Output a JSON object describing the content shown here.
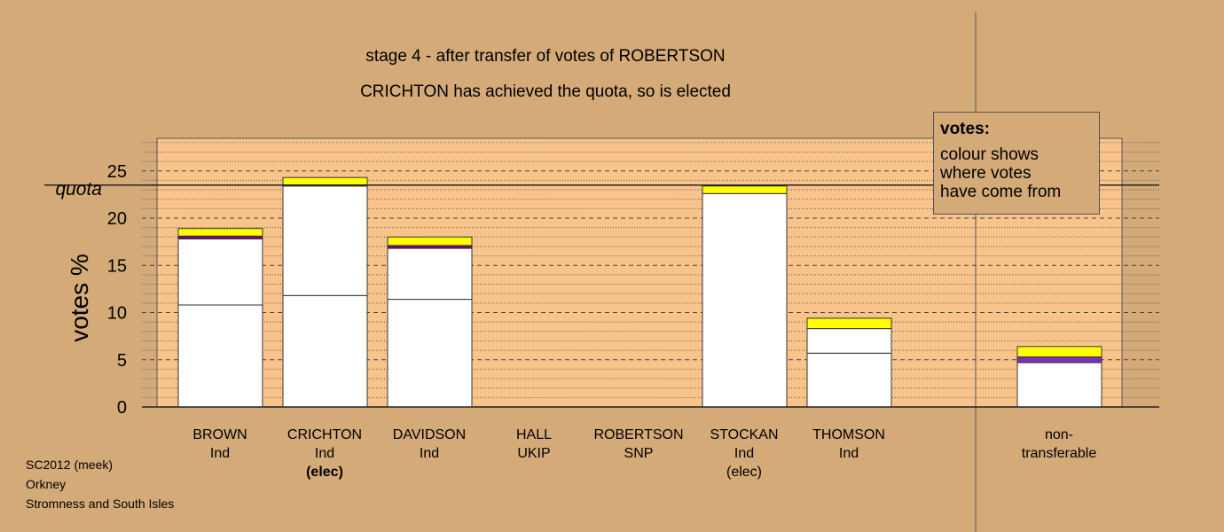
{
  "title": "stage 4 - after transfer of votes of ROBERTSON",
  "subtitle": "CRICHTON has achieved the quota, so is elected",
  "legend": {
    "heading": "votes:",
    "line1": "colour shows",
    "line2": "where votes",
    "line3": "have come from"
  },
  "footer": {
    "line1": "SC2012 (meek)",
    "line2": "Orkney",
    "line3": "Stromness and South Isles"
  },
  "colors": {
    "background": "#d4aa78",
    "plot_area": "#f9c48c",
    "first_preferences": "#ffffff",
    "transfer_1": "#800080",
    "transfer_2": "#ffff00",
    "transfer_3": "#7b2fbe"
  },
  "chart_data": {
    "type": "bar",
    "stacked": true,
    "ylabel": "votes %",
    "quota_label": "quota",
    "quota": 23.5,
    "ylim": [
      0,
      28.5
    ],
    "yticks": [
      0,
      5,
      10,
      15,
      20,
      25
    ],
    "grid": "dashed major, dotted minor",
    "categories": [
      {
        "name": "BROWN",
        "party": "Ind",
        "status": ""
      },
      {
        "name": "CRICHTON",
        "party": "Ind",
        "status": "(elec)"
      },
      {
        "name": "DAVIDSON",
        "party": "Ind",
        "status": ""
      },
      {
        "name": "HALL",
        "party": "UKIP",
        "status": ""
      },
      {
        "name": "ROBERTSON",
        "party": "SNP",
        "status": ""
      },
      {
        "name": "STOCKAN",
        "party": "Ind",
        "status": "(elec)"
      },
      {
        "name": "THOMSON",
        "party": "Ind",
        "status": ""
      },
      {
        "name": "non-",
        "party": "transferable",
        "status": ""
      }
    ],
    "series": [
      {
        "color": "#ffffff",
        "values": [
          10.8,
          11.8,
          11.4,
          0,
          0,
          22.6,
          5.7,
          0
        ]
      },
      {
        "color": "#ffffff",
        "values": [
          7.0,
          11.6,
          5.4,
          0,
          0,
          0,
          2.6,
          4.7
        ]
      },
      {
        "color": "#800080",
        "values": [
          0.3,
          0,
          0.3,
          0,
          0,
          0,
          0,
          0
        ]
      },
      {
        "color": "#7b2fbe",
        "values": [
          0,
          0,
          0,
          0,
          0,
          0,
          0,
          0.6
        ]
      },
      {
        "color": "#ffff00",
        "values": [
          0.8,
          0.9,
          0.9,
          0,
          0,
          0.8,
          1.1,
          1.1
        ]
      }
    ]
  }
}
